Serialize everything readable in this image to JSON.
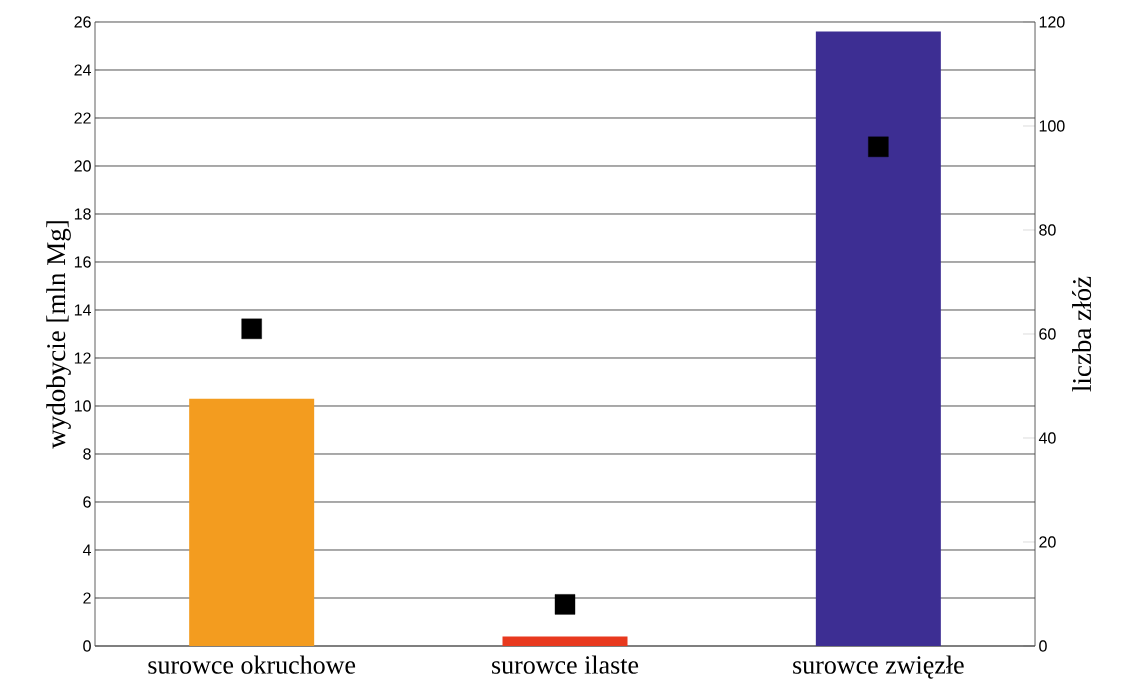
{
  "chart_data": {
    "type": "bar",
    "ylabel": "wydobycie [mln Mg]",
    "y2label": "liczba złóż",
    "categories": [
      "surowce okruchowe",
      "surowce ilaste",
      "surowce zwięzłe"
    ],
    "series": [
      {
        "colors": [
          "#f39c1f",
          "#e8391e",
          "#3d2e93"
        ],
        "values": [
          10.3,
          0.4,
          25.6
        ]
      },
      {
        "type": "scatter",
        "axis": "y2",
        "color": "#000000",
        "marker": "square",
        "values": [
          61,
          8,
          96
        ]
      }
    ],
    "ylim": [
      0,
      26
    ],
    "yticks": [
      0,
      2,
      4,
      6,
      8,
      10,
      12,
      14,
      16,
      18,
      20,
      22,
      24,
      26
    ],
    "y2lim": [
      0,
      120
    ],
    "y2ticks": [
      0,
      20,
      40,
      60,
      80,
      100,
      120
    ],
    "grid": "y"
  }
}
